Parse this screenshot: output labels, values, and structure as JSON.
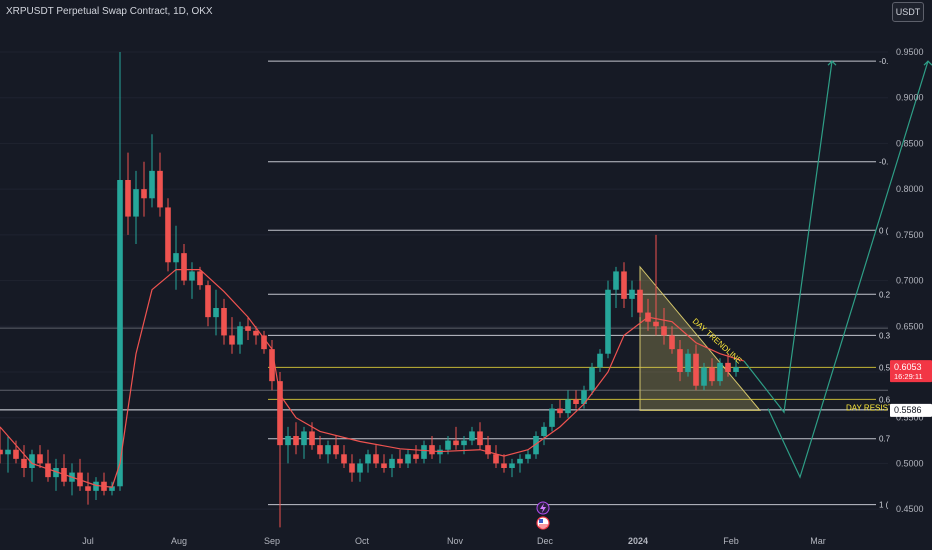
{
  "header": {
    "title": "XRPUSDT Perpetual Swap Contract, 1D, OKX"
  },
  "currency_button": {
    "label": "USDT"
  },
  "icons": [
    "lightning-icon",
    "us-flag-icon"
  ],
  "colors": {
    "background": "#161a25",
    "up": "#26a69a",
    "down": "#ef5350",
    "ma": "#ef5350",
    "fib": "#e0e3eb",
    "fib_yellow": "#ffeb3b",
    "triangle": "#d4c56a",
    "projection": "#2e9e86",
    "last_price_bg": "#f23645",
    "resistance_bg": "#ffffff"
  },
  "chart_data": {
    "type": "candlestick",
    "x_ticks": [
      "Jul",
      "Aug",
      "Sep",
      "Oct",
      "Nov",
      "Dec",
      "2024",
      "Feb",
      "Mar"
    ],
    "y_ticks": [
      "0.9500",
      "0.9000",
      "0.8500",
      "0.8000",
      "0.7500",
      "0.7000",
      "0.6500",
      "0.6000",
      "0.5500",
      "0.5000",
      "0.4500"
    ],
    "ylim": [
      0.425,
      0.985
    ],
    "candle_index_range": [
      0,
      111
    ],
    "ohlc": [
      [
        0.515,
        0.54,
        0.5,
        0.51
      ],
      [
        0.51,
        0.53,
        0.49,
        0.515
      ],
      [
        0.515,
        0.525,
        0.5,
        0.505
      ],
      [
        0.505,
        0.52,
        0.485,
        0.495
      ],
      [
        0.495,
        0.515,
        0.48,
        0.51
      ],
      [
        0.51,
        0.52,
        0.495,
        0.5
      ],
      [
        0.5,
        0.515,
        0.48,
        0.485
      ],
      [
        0.485,
        0.505,
        0.47,
        0.495
      ],
      [
        0.495,
        0.51,
        0.475,
        0.48
      ],
      [
        0.48,
        0.5,
        0.465,
        0.49
      ],
      [
        0.49,
        0.505,
        0.47,
        0.475
      ],
      [
        0.475,
        0.49,
        0.455,
        0.47
      ],
      [
        0.47,
        0.485,
        0.46,
        0.48
      ],
      [
        0.48,
        0.49,
        0.465,
        0.47
      ],
      [
        0.47,
        0.48,
        0.465,
        0.475
      ],
      [
        0.475,
        0.95,
        0.47,
        0.81
      ],
      [
        0.81,
        0.84,
        0.75,
        0.77
      ],
      [
        0.77,
        0.82,
        0.74,
        0.8
      ],
      [
        0.8,
        0.83,
        0.77,
        0.79
      ],
      [
        0.79,
        0.86,
        0.78,
        0.82
      ],
      [
        0.82,
        0.84,
        0.77,
        0.78
      ],
      [
        0.78,
        0.79,
        0.71,
        0.72
      ],
      [
        0.72,
        0.76,
        0.69,
        0.73
      ],
      [
        0.73,
        0.74,
        0.695,
        0.7
      ],
      [
        0.7,
        0.72,
        0.68,
        0.71
      ],
      [
        0.71,
        0.715,
        0.69,
        0.695
      ],
      [
        0.695,
        0.7,
        0.65,
        0.66
      ],
      [
        0.66,
        0.69,
        0.64,
        0.67
      ],
      [
        0.67,
        0.68,
        0.63,
        0.64
      ],
      [
        0.64,
        0.66,
        0.62,
        0.63
      ],
      [
        0.63,
        0.655,
        0.62,
        0.65
      ],
      [
        0.65,
        0.66,
        0.635,
        0.645
      ],
      [
        0.645,
        0.65,
        0.63,
        0.64
      ],
      [
        0.64,
        0.645,
        0.62,
        0.625
      ],
      [
        0.625,
        0.635,
        0.58,
        0.59
      ],
      [
        0.59,
        0.6,
        0.43,
        0.52
      ],
      [
        0.52,
        0.54,
        0.5,
        0.53
      ],
      [
        0.53,
        0.545,
        0.51,
        0.52
      ],
      [
        0.52,
        0.54,
        0.505,
        0.535
      ],
      [
        0.535,
        0.545,
        0.515,
        0.52
      ],
      [
        0.52,
        0.53,
        0.505,
        0.51
      ],
      [
        0.51,
        0.525,
        0.5,
        0.52
      ],
      [
        0.52,
        0.53,
        0.505,
        0.51
      ],
      [
        0.51,
        0.52,
        0.495,
        0.5
      ],
      [
        0.5,
        0.51,
        0.48,
        0.49
      ],
      [
        0.49,
        0.505,
        0.48,
        0.5
      ],
      [
        0.5,
        0.515,
        0.49,
        0.51
      ],
      [
        0.51,
        0.52,
        0.495,
        0.5
      ],
      [
        0.5,
        0.51,
        0.49,
        0.495
      ],
      [
        0.495,
        0.51,
        0.485,
        0.505
      ],
      [
        0.505,
        0.515,
        0.495,
        0.5
      ],
      [
        0.5,
        0.515,
        0.495,
        0.51
      ],
      [
        0.51,
        0.52,
        0.5,
        0.505
      ],
      [
        0.505,
        0.525,
        0.5,
        0.52
      ],
      [
        0.52,
        0.53,
        0.505,
        0.51
      ],
      [
        0.51,
        0.52,
        0.5,
        0.515
      ],
      [
        0.515,
        0.53,
        0.51,
        0.525
      ],
      [
        0.525,
        0.54,
        0.515,
        0.52
      ],
      [
        0.52,
        0.53,
        0.51,
        0.525
      ],
      [
        0.525,
        0.54,
        0.52,
        0.535
      ],
      [
        0.535,
        0.545,
        0.515,
        0.52
      ],
      [
        0.52,
        0.53,
        0.505,
        0.51
      ],
      [
        0.51,
        0.52,
        0.495,
        0.5
      ],
      [
        0.5,
        0.51,
        0.49,
        0.495
      ],
      [
        0.495,
        0.505,
        0.485,
        0.5
      ],
      [
        0.5,
        0.51,
        0.49,
        0.505
      ],
      [
        0.505,
        0.515,
        0.5,
        0.51
      ],
      [
        0.51,
        0.535,
        0.505,
        0.53
      ],
      [
        0.53,
        0.545,
        0.52,
        0.54
      ],
      [
        0.54,
        0.565,
        0.535,
        0.56
      ],
      [
        0.56,
        0.57,
        0.55,
        0.555
      ],
      [
        0.555,
        0.58,
        0.55,
        0.57
      ],
      [
        0.57,
        0.58,
        0.56,
        0.565
      ],
      [
        0.565,
        0.585,
        0.56,
        0.58
      ],
      [
        0.58,
        0.61,
        0.575,
        0.605
      ],
      [
        0.605,
        0.625,
        0.6,
        0.62
      ],
      [
        0.62,
        0.7,
        0.615,
        0.69
      ],
      [
        0.69,
        0.715,
        0.67,
        0.71
      ],
      [
        0.71,
        0.72,
        0.67,
        0.68
      ],
      [
        0.68,
        0.7,
        0.66,
        0.69
      ],
      [
        0.69,
        0.7,
        0.66,
        0.665
      ],
      [
        0.665,
        0.68,
        0.645,
        0.655
      ],
      [
        0.655,
        0.75,
        0.64,
        0.65
      ],
      [
        0.65,
        0.67,
        0.63,
        0.64
      ],
      [
        0.64,
        0.65,
        0.62,
        0.625
      ],
      [
        0.625,
        0.635,
        0.59,
        0.6
      ],
      [
        0.6,
        0.625,
        0.595,
        0.62
      ],
      [
        0.62,
        0.63,
        0.58,
        0.585
      ],
      [
        0.585,
        0.61,
        0.58,
        0.605
      ],
      [
        0.605,
        0.615,
        0.585,
        0.59
      ],
      [
        0.59,
        0.615,
        0.585,
        0.61
      ],
      [
        0.61,
        0.62,
        0.595,
        0.6
      ],
      [
        0.6,
        0.615,
        0.595,
        0.6053
      ]
    ],
    "moving_average": [
      [
        0,
        0.54
      ],
      [
        4,
        0.5
      ],
      [
        8,
        0.488
      ],
      [
        12,
        0.476
      ],
      [
        14,
        0.474
      ],
      [
        15,
        0.5
      ],
      [
        17,
        0.62
      ],
      [
        19,
        0.69
      ],
      [
        22,
        0.712
      ],
      [
        25,
        0.712
      ],
      [
        28,
        0.688
      ],
      [
        31,
        0.66
      ],
      [
        34,
        0.625
      ],
      [
        35,
        0.575
      ],
      [
        37,
        0.55
      ],
      [
        40,
        0.535
      ],
      [
        45,
        0.524
      ],
      [
        50,
        0.516
      ],
      [
        55,
        0.513
      ],
      [
        60,
        0.515
      ],
      [
        63,
        0.508
      ],
      [
        66,
        0.515
      ],
      [
        70,
        0.54
      ],
      [
        73,
        0.565
      ],
      [
        76,
        0.6
      ],
      [
        78,
        0.64
      ],
      [
        81,
        0.66
      ],
      [
        84,
        0.655
      ],
      [
        87,
        0.632
      ],
      [
        90,
        0.62
      ],
      [
        93,
        0.612
      ]
    ],
    "fib_levels": [
      {
        "label": "-0.",
        "price": 0.94
      },
      {
        "label": "-0.",
        "price": 0.83
      },
      {
        "label": "0 (",
        "price": 0.755
      },
      {
        "label": "0.2",
        "price": 0.685
      },
      {
        "label": "0.3",
        "price": 0.64
      },
      {
        "label": "0.5",
        "price": 0.605
      },
      {
        "label": "0.6",
        "price": 0.57
      },
      {
        "label": "0.7",
        "price": 0.527
      },
      {
        "label": "1 (",
        "price": 0.455
      }
    ],
    "horizontal_lines": [
      0.648,
      0.58,
      0.5586
    ],
    "triangle": [
      [
        80,
        0.715
      ],
      [
        80,
        0.558
      ],
      [
        95,
        0.558
      ]
    ],
    "trendline_label": "DAY TRENDLINE",
    "resistance_label": "DAY RESIST",
    "projections": [
      {
        "points": [
          [
            93,
            0.612
          ],
          [
            98,
            0.556
          ],
          [
            104,
            0.94
          ]
        ]
      },
      {
        "points": [
          [
            96,
            0.56
          ],
          [
            100,
            0.485
          ],
          [
            116,
            0.94
          ]
        ]
      }
    ],
    "last_price": {
      "value": "0.6053",
      "countdown": "16:29:11"
    },
    "resistance_price": "0.5586"
  }
}
